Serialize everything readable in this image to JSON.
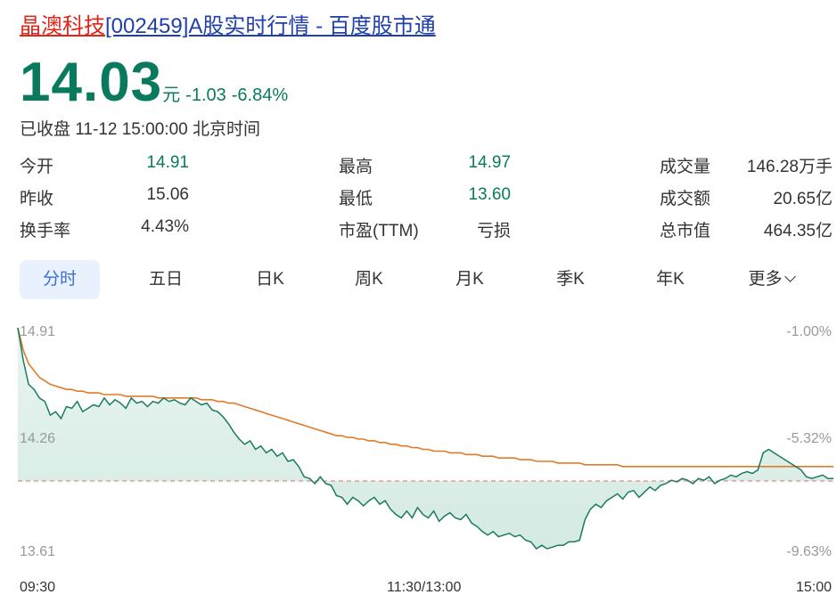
{
  "header": {
    "stock_name": "晶澳科技",
    "title_rest": "[002459]A股实时行情 - 百度股市通"
  },
  "quote": {
    "price": "14.03",
    "unit": "元",
    "change": "-1.03",
    "change_pct": "-6.84%",
    "status": "已收盘 11-12 15:00:00 北京时间"
  },
  "stats": [
    [
      {
        "label": "今开",
        "value": "14.91",
        "color": "green"
      },
      {
        "label": "最高",
        "value": "14.97",
        "color": "green"
      },
      {
        "label": "成交量",
        "value": "146.28万手",
        "color": "normal"
      }
    ],
    [
      {
        "label": "昨收",
        "value": "15.06",
        "color": "normal"
      },
      {
        "label": "最低",
        "value": "13.60",
        "color": "green"
      },
      {
        "label": "成交额",
        "value": "20.65亿",
        "color": "normal"
      }
    ],
    [
      {
        "label": "换手率",
        "value": "4.43%",
        "color": "normal"
      },
      {
        "label": "市盈(TTM)",
        "value": "亏损",
        "color": "normal"
      },
      {
        "label": "总市值",
        "value": "464.35亿",
        "color": "normal"
      }
    ]
  ],
  "tabs": [
    "分时",
    "五日",
    "日K",
    "周K",
    "月K",
    "季K",
    "年K",
    "更多"
  ],
  "active_tab": "分时",
  "colors": {
    "price_line": "#1a7a62",
    "avg_line": "#e07b2a",
    "prev_close": "#e88a8a",
    "fill": "#dff0ea"
  },
  "chart_data": {
    "type": "line",
    "y_labels": [
      "14.91",
      "14.26",
      "13.61"
    ],
    "pct_labels": [
      "-1.00%",
      "-5.32%",
      "-9.63%"
    ],
    "x_labels": [
      "09:30",
      "11:30/13:00",
      "15:00"
    ],
    "ylim": [
      13.61,
      14.91
    ],
    "prev_close": 15.06,
    "series": [
      {
        "role": "price",
        "values": [
          14.91,
          14.72,
          14.58,
          14.55,
          14.5,
          14.48,
          14.4,
          14.42,
          14.38,
          14.45,
          14.44,
          14.48,
          14.42,
          14.44,
          14.46,
          14.45,
          14.5,
          14.46,
          14.49,
          14.47,
          14.44,
          14.5,
          14.47,
          14.48,
          14.45,
          14.48,
          14.47,
          14.5,
          14.48,
          14.49,
          14.47,
          14.46,
          14.5,
          14.48,
          14.46,
          14.47,
          14.43,
          14.42,
          14.39,
          14.35,
          14.3,
          14.26,
          14.23,
          14.25,
          14.2,
          14.22,
          14.18,
          14.2,
          14.16,
          14.18,
          14.13,
          14.14,
          14.1,
          14.04,
          14.03,
          14.0,
          14.04,
          14.0,
          13.99,
          13.93,
          13.92,
          13.88,
          13.92,
          13.9,
          13.87,
          13.9,
          13.92,
          13.88,
          13.9,
          13.85,
          13.82,
          13.8,
          13.84,
          13.8,
          13.86,
          13.82,
          13.8,
          13.84,
          13.78,
          13.81,
          13.83,
          13.8,
          13.79,
          13.82,
          13.77,
          13.75,
          13.72,
          13.7,
          13.72,
          13.69,
          13.7,
          13.71,
          13.69,
          13.7,
          13.67,
          13.66,
          13.62,
          13.64,
          13.62,
          13.63,
          13.64,
          13.64,
          13.66,
          13.66,
          13.67,
          13.79,
          13.85,
          13.88,
          13.86,
          13.9,
          13.92,
          13.94,
          13.91,
          13.95,
          13.96,
          13.92,
          13.95,
          13.98,
          13.96,
          13.99,
          14.0,
          14.02,
          14.01,
          14.03,
          14.02,
          14.0,
          14.03,
          14.02,
          14.04,
          14.0,
          14.02,
          14.03,
          14.05,
          14.04,
          14.06,
          14.07,
          14.06,
          14.08,
          14.18,
          14.2,
          14.18,
          14.16,
          14.14,
          14.12,
          14.1,
          14.08,
          14.04,
          14.03,
          14.04,
          14.05,
          14.03,
          14.03
        ]
      },
      {
        "role": "average",
        "values": [
          14.91,
          14.78,
          14.7,
          14.66,
          14.62,
          14.6,
          14.58,
          14.57,
          14.56,
          14.55,
          14.55,
          14.54,
          14.54,
          14.53,
          14.53,
          14.53,
          14.52,
          14.52,
          14.52,
          14.52,
          14.51,
          14.51,
          14.51,
          14.51,
          14.51,
          14.51,
          14.5,
          14.5,
          14.5,
          14.5,
          14.5,
          14.5,
          14.5,
          14.5,
          14.49,
          14.49,
          14.49,
          14.48,
          14.48,
          14.47,
          14.47,
          14.46,
          14.45,
          14.44,
          14.43,
          14.42,
          14.41,
          14.4,
          14.39,
          14.38,
          14.37,
          14.36,
          14.35,
          14.34,
          14.33,
          14.32,
          14.31,
          14.3,
          14.29,
          14.28,
          14.28,
          14.27,
          14.27,
          14.26,
          14.26,
          14.25,
          14.25,
          14.24,
          14.24,
          14.23,
          14.23,
          14.22,
          14.22,
          14.21,
          14.21,
          14.2,
          14.2,
          14.19,
          14.19,
          14.19,
          14.18,
          14.18,
          14.18,
          14.17,
          14.17,
          14.17,
          14.16,
          14.16,
          14.16,
          14.15,
          14.15,
          14.15,
          14.15,
          14.14,
          14.14,
          14.14,
          14.13,
          14.13,
          14.13,
          14.13,
          14.12,
          14.12,
          14.12,
          14.12,
          14.12,
          14.11,
          14.11,
          14.11,
          14.11,
          14.11,
          14.11,
          14.11,
          14.1,
          14.1,
          14.1,
          14.1,
          14.1,
          14.1,
          14.1,
          14.1,
          14.1,
          14.1,
          14.1,
          14.1,
          14.1,
          14.1,
          14.1,
          14.1,
          14.1,
          14.1,
          14.1,
          14.1,
          14.1,
          14.1,
          14.1,
          14.1,
          14.1,
          14.1,
          14.1,
          14.1,
          14.1,
          14.1,
          14.1,
          14.1,
          14.1,
          14.1,
          14.1,
          14.1,
          14.1,
          14.1,
          14.1,
          14.1
        ]
      }
    ]
  }
}
